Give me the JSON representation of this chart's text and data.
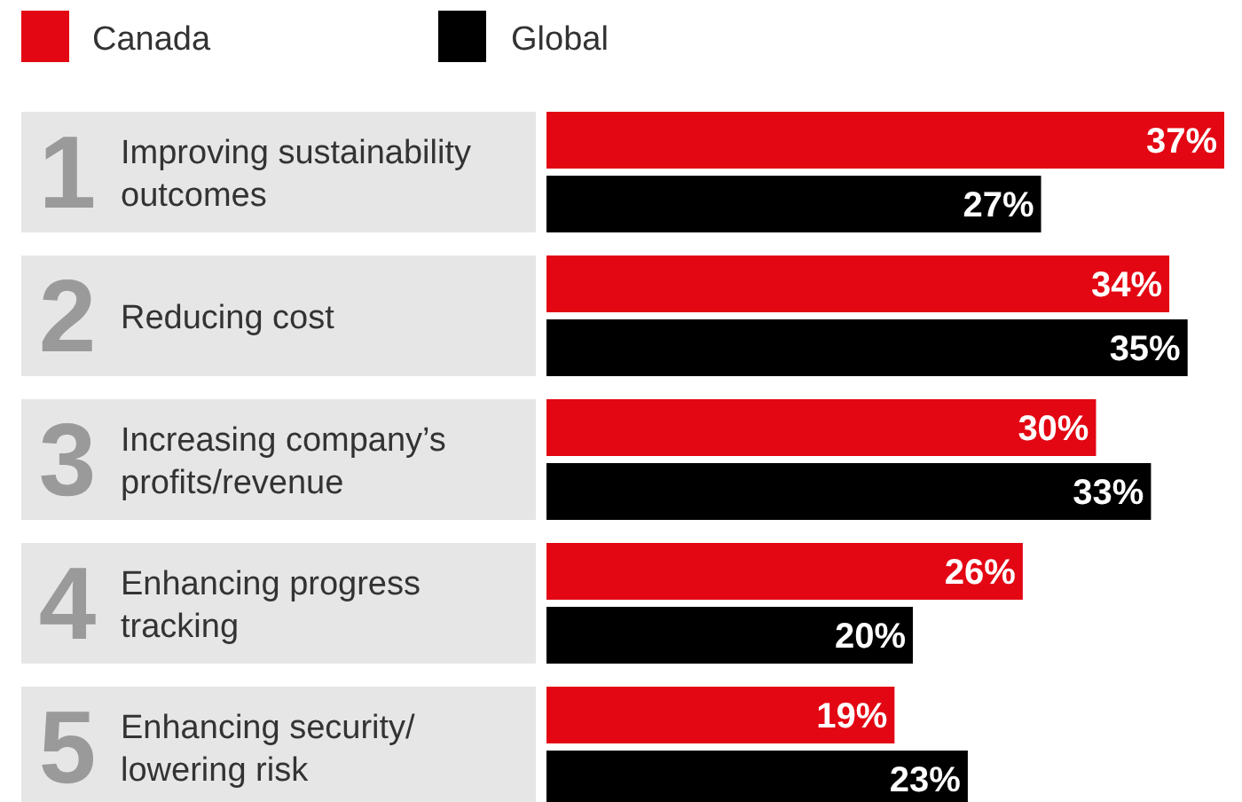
{
  "chart_data": {
    "type": "bar",
    "orientation": "horizontal",
    "legend": "top left",
    "categories": [
      "1 Improving sustainability outcomes",
      "2 Reducing cost",
      "3 Increasing company’s profits/revenue",
      "4 Enhancing progress tracking",
      "5 Enhancing security/ lowering risk"
    ],
    "series": [
      {
        "name": "Canada",
        "color": "#e30613",
        "values": [
          37,
          34,
          30,
          26,
          19
        ],
        "value_labels": [
          "37%",
          "34%",
          "30%",
          "26%",
          "19%"
        ]
      },
      {
        "name": "Global",
        "color": "#000000",
        "values": [
          27,
          35,
          33,
          20,
          23
        ],
        "value_labels": [
          "27%",
          "35%",
          "33%",
          "20%",
          "23%"
        ]
      }
    ]
  }
}
